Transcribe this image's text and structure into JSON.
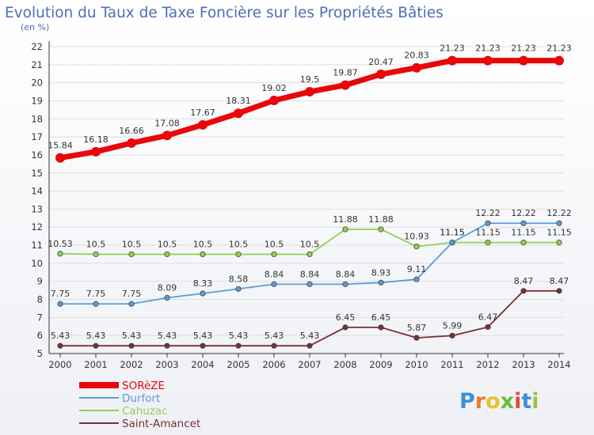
{
  "title": "Evolution du Taux de Taxe Foncière sur les Propriétés Bâties",
  "subtitle": "(en %)",
  "brand": {
    "letters": [
      "P",
      "r",
      "o",
      "x",
      "i",
      "t",
      "i"
    ],
    "colors": [
      "#3d8fd8",
      "#e57f29",
      "#e8c22a",
      "#6dbb3a",
      "#e24a3b",
      "#3d8fd8",
      "#9ac438"
    ]
  },
  "chart_data": {
    "type": "line",
    "x": [
      2000,
      2001,
      2002,
      2003,
      2004,
      2005,
      2006,
      2007,
      2008,
      2009,
      2010,
      2011,
      2012,
      2013,
      2014
    ],
    "ylim": [
      5,
      22
    ],
    "yticks": [
      5,
      6,
      7,
      8,
      9,
      10,
      11,
      12,
      13,
      14,
      15,
      16,
      17,
      18,
      19,
      20,
      21,
      22
    ],
    "grid": "horizontal",
    "legend_position": "bottom-left",
    "series": [
      {
        "name": "SORèZE",
        "color": "#e8070a",
        "values": [
          15.84,
          16.18,
          16.66,
          17.08,
          17.67,
          18.31,
          19.02,
          19.5,
          19.87,
          20.47,
          20.83,
          21.23,
          21.23,
          21.23,
          21.23
        ],
        "labels": [
          "15.84",
          "16.18",
          "16.66",
          "17.08",
          "17.67",
          "18.31",
          "19.02",
          "19.5",
          "19.87",
          "20.47",
          "20.83",
          "21.23",
          "21.23",
          "21.23",
          "21.23"
        ]
      },
      {
        "name": "Durfort",
        "color": "#5b9bd5",
        "values": [
          7.75,
          7.75,
          7.75,
          8.09,
          8.33,
          8.58,
          8.84,
          8.84,
          8.84,
          8.93,
          9.11,
          11.15,
          12.22,
          12.22,
          12.22
        ],
        "labels": [
          "7.75",
          "7.75",
          "7.75",
          "8.09",
          "8.33",
          "8.58",
          "8.84",
          "8.84",
          "8.84",
          "8.93",
          "9.11",
          "11.15",
          "12.22",
          "12.22",
          "12.22"
        ]
      },
      {
        "name": "Cahuzac",
        "color": "#8fd151",
        "values": [
          10.53,
          10.5,
          10.5,
          10.5,
          10.5,
          10.5,
          10.5,
          10.5,
          11.88,
          11.88,
          10.93,
          11.15,
          11.15,
          11.15,
          11.15
        ],
        "labels": [
          "10.53",
          "10.5",
          "10.5",
          "10.5",
          "10.5",
          "10.5",
          "10.5",
          "10.5",
          "11.88",
          "11.88",
          "10.93",
          "11.15",
          "11.15",
          "11.15",
          "11.15"
        ]
      },
      {
        "name": "Saint-Amancet",
        "color": "#7b2e33",
        "values": [
          5.43,
          5.43,
          5.43,
          5.43,
          5.43,
          5.43,
          5.43,
          5.43,
          6.45,
          6.45,
          5.87,
          5.99,
          6.47,
          8.47,
          8.47
        ],
        "labels": [
          "5.43",
          "5.43",
          "5.43",
          "5.43",
          "5.43",
          "5.43",
          "5.43",
          "5.43",
          "6.45",
          "6.45",
          "5.87",
          "5.99",
          "6.47",
          "8.47",
          "8.47"
        ]
      }
    ]
  }
}
